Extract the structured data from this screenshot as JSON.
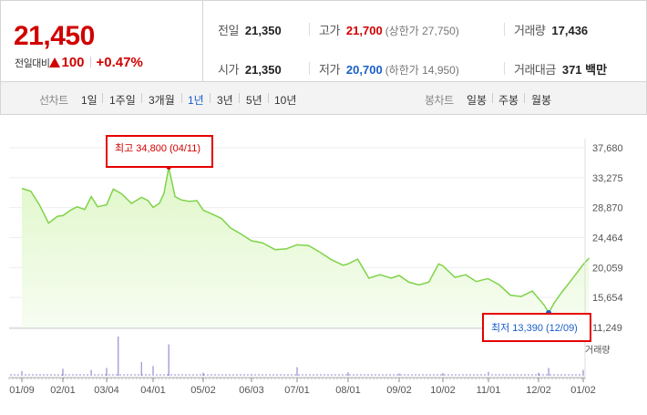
{
  "quote": {
    "price": "21,450",
    "change_label": "전일대비",
    "change_amount": "100",
    "change_rate": "+0.47%"
  },
  "stats": {
    "prev_close_label": "전일",
    "prev_close": "21,350",
    "high_label": "고가",
    "high": "21,700",
    "upper_limit_label": "(상한가 27,750)",
    "volume_label": "거래량",
    "volume": "17,436",
    "open_label": "시가",
    "open": "21,350",
    "low_label": "저가",
    "low": "20,700",
    "lower_limit_label": "(하한가 14,950)",
    "amount_label": "거래대금",
    "amount": "371 백만"
  },
  "period_bar": {
    "line_chart_label": "선차트",
    "periods": [
      "1일",
      "1주일",
      "3개월",
      "1년",
      "3년",
      "5년",
      "10년"
    ],
    "active_period": "1년",
    "candle_chart_label": "봉차트",
    "candles": [
      "일봉",
      "주봉",
      "월봉"
    ]
  },
  "annotations": {
    "high": "최고 34,800 (04/11)",
    "low": "최저 13,390 (12/09)"
  },
  "colors": {
    "up": "#d10000",
    "down": "#1a5fc8",
    "line": "#7ed348",
    "fill": "#dff7c8",
    "volume": "#9a8ad0"
  },
  "chart_data": {
    "type": "area",
    "yticks": [
      "37,680",
      "33,275",
      "28,870",
      "24,464",
      "20,059",
      "15,654",
      "11,249"
    ],
    "ylim": [
      11249,
      37680
    ],
    "xticks": [
      "01/09",
      "02/01",
      "03/04",
      "04/01",
      "05/02",
      "06/03",
      "07/01",
      "08/01",
      "09/02",
      "10/02",
      "11/01",
      "12/02",
      "01/02"
    ],
    "volume_label": "거래량",
    "series": [
      {
        "x": [
          "01/09",
          "01/14",
          "01/19",
          "01/24",
          "01/29",
          "02/01",
          "02/07",
          "02/12",
          "02/18",
          "02/23",
          "02/28",
          "03/04",
          "03/08",
          "03/13",
          "03/19",
          "03/25",
          "03/29",
          "04/01",
          "04/05",
          "04/08",
          "04/11",
          "04/15",
          "04/19",
          "04/24",
          "04/29",
          "05/02",
          "05/07",
          "05/14",
          "05/20",
          "05/27",
          "06/03",
          "06/10",
          "06/18",
          "06/25",
          "07/01",
          "07/08",
          "07/15",
          "07/22",
          "07/29",
          "08/01",
          "08/07",
          "08/14",
          "08/21",
          "08/28",
          "09/02",
          "09/09",
          "09/16",
          "09/23",
          "09/30",
          "10/02",
          "10/10",
          "10/17",
          "10/24",
          "10/31",
          "11/01",
          "11/08",
          "11/15",
          "11/22",
          "11/29",
          "12/02",
          "12/06",
          "12/09",
          "12/13",
          "12/18",
          "12/24",
          "01/02",
          "01/06"
        ],
        "values": [
          31700,
          31300,
          29200,
          26600,
          27600,
          27700,
          28500,
          29000,
          28600,
          30500,
          29000,
          29300,
          31600,
          30900,
          29500,
          30400,
          29900,
          28900,
          29500,
          31000,
          34800,
          30500,
          30000,
          29800,
          29900,
          28500,
          28000,
          27300,
          25900,
          25000,
          24000,
          23700,
          22700,
          22800,
          23400,
          23300,
          22300,
          21200,
          20400,
          20600,
          21300,
          18500,
          19000,
          18500,
          18900,
          17900,
          17500,
          17900,
          20600,
          20300,
          18600,
          19000,
          18000,
          18400,
          18400,
          17500,
          16000,
          15800,
          16600,
          15500,
          14500,
          13390,
          14900,
          16400,
          18000,
          20500,
          21450
        ]
      }
    ],
    "volume": {
      "x": [
        "01/09",
        "02/01",
        "02/23",
        "03/04",
        "03/11",
        "03/25",
        "04/01",
        "04/11",
        "05/02",
        "06/03",
        "07/01",
        "08/01",
        "09/02",
        "10/02",
        "11/01",
        "12/02",
        "12/09",
        "01/02"
      ],
      "values": [
        0.12,
        0.18,
        0.15,
        0.2,
        1.0,
        0.35,
        0.25,
        0.8,
        0.08,
        0.05,
        0.22,
        0.09,
        0.06,
        0.07,
        0.1,
        0.08,
        0.2,
        0.15
      ]
    }
  }
}
